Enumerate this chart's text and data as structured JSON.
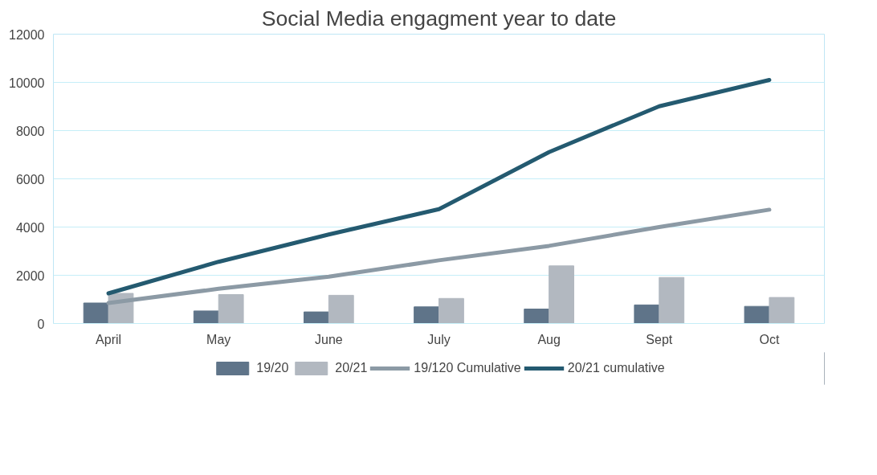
{
  "chart_data": {
    "type": "bar",
    "title": "Social Media engagment year to date",
    "categories": [
      "April",
      "May",
      "June",
      "July",
      "Aug",
      "Sept",
      "Oct"
    ],
    "series": [
      {
        "name": "19/20",
        "color": "#5f7489",
        "values": [
          850,
          520,
          480,
          690,
          600,
          770,
          710
        ]
      },
      {
        "name": "20/21",
        "color": "#b2b8c0",
        "values": [
          1250,
          1200,
          1170,
          1040,
          2390,
          1910,
          1080
        ]
      },
      {
        "name": "19/120 Cumulative",
        "type": "line",
        "color": "#8c9aa5",
        "values": [
          850,
          1440,
          1940,
          2620,
          3220,
          4000,
          4720
        ]
      },
      {
        "name": "20/21 cumulative",
        "type": "line",
        "color": "#245a70",
        "values": [
          1250,
          2560,
          3690,
          4740,
          7110,
          9010,
          10100
        ]
      }
    ],
    "ylim": [
      0,
      12000
    ],
    "yticks": [
      0,
      2000,
      4000,
      6000,
      8000,
      10000,
      12000
    ],
    "grid": "y",
    "legend": "bottom"
  }
}
